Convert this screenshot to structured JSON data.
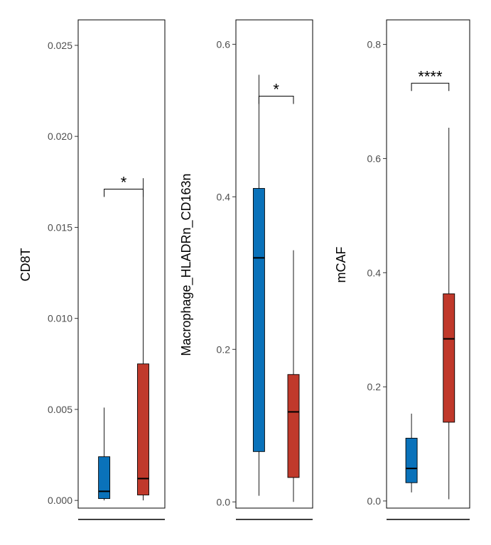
{
  "chart_data": [
    {
      "type": "box",
      "ylabel": "CD8T",
      "ylim": [
        -0.0005,
        0.0264
      ],
      "yticks": [
        0.0,
        0.005,
        0.01,
        0.015,
        0.02,
        0.025
      ],
      "ytick_labels": [
        "0.000",
        "0.005",
        "0.010",
        "0.015",
        "0.020",
        "0.025"
      ],
      "boxes": [
        {
          "color": "#0a72ba",
          "whisker_low": 0.0,
          "q1": 0.0001,
          "median": 0.0005,
          "q3": 0.0024,
          "whisker_high": 0.0051
        },
        {
          "color": "#c0392b",
          "whisker_low": 0.0,
          "q1": 0.0003,
          "median": 0.0012,
          "q3": 0.0075,
          "whisker_high": 0.0177
        }
      ],
      "significance": {
        "label": "*",
        "y": 0.0171
      }
    },
    {
      "type": "box",
      "ylabel": "Macrophage_HLADRn_CD163n",
      "ylim": [
        -0.01,
        0.632
      ],
      "yticks": [
        0.0,
        0.2,
        0.4,
        0.6
      ],
      "ytick_labels": [
        "0.0",
        "0.2",
        "0.4",
        "0.6"
      ],
      "boxes": [
        {
          "color": "#0a72ba",
          "whisker_low": 0.008,
          "q1": 0.066,
          "median": 0.32,
          "q3": 0.411,
          "whisker_high": 0.56
        },
        {
          "color": "#c0392b",
          "whisker_low": 0.0,
          "q1": 0.032,
          "median": 0.118,
          "q3": 0.167,
          "whisker_high": 0.33
        }
      ],
      "significance": {
        "label": "*",
        "y": 0.532
      }
    },
    {
      "type": "box",
      "ylabel": "mCAF",
      "ylim": [
        -0.015,
        0.843
      ],
      "yticks": [
        0.0,
        0.2,
        0.4,
        0.6,
        0.8
      ],
      "ytick_labels": [
        "0.0",
        "0.2",
        "0.4",
        "0.6",
        "0.8"
      ],
      "boxes": [
        {
          "color": "#0a72ba",
          "whisker_low": 0.015,
          "q1": 0.032,
          "median": 0.057,
          "q3": 0.11,
          "whisker_high": 0.153
        },
        {
          "color": "#c0392b",
          "whisker_low": 0.003,
          "q1": 0.138,
          "median": 0.284,
          "q3": 0.363,
          "whisker_high": 0.654
        }
      ],
      "significance": {
        "label": "****",
        "y": 0.732
      }
    }
  ]
}
